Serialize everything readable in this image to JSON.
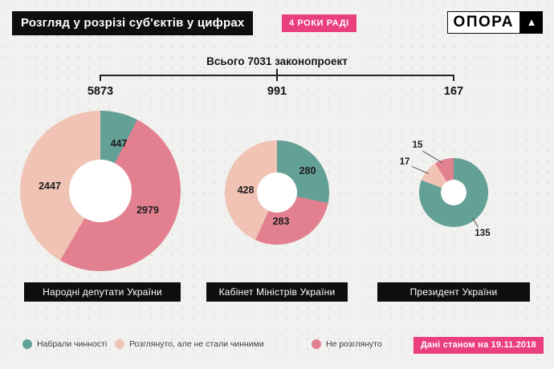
{
  "header": {
    "title": "Розгляд у розрізі суб'єктів у цифрах",
    "badge": "4 РОКИ РАДІ",
    "logo_text": "ОПОРА",
    "logo_triangle": "▲"
  },
  "overview": {
    "total_label": "Всього 7031 законопроект",
    "total_value": 7031
  },
  "chart_data": [
    {
      "type": "pie",
      "variant": "donut",
      "title": "Народні депутати України",
      "total": 5873,
      "direction": "clockwise",
      "start": "top",
      "segments": [
        {
          "label": "Набрали чинності",
          "value": 447,
          "color": "#63a096"
        },
        {
          "label": "Не розглянуто",
          "value": 2979,
          "color": "#e38090"
        },
        {
          "label": "Розглянуто, але не стали чинними",
          "value": 2447,
          "color": "#f0c3b5"
        }
      ]
    },
    {
      "type": "pie",
      "variant": "donut",
      "title": "Кабінет Міністрів України",
      "total": 991,
      "direction": "clockwise",
      "start": "top",
      "segments": [
        {
          "label": "Набрали чинності",
          "value": 280,
          "color": "#63a096"
        },
        {
          "label": "Не розглянуто",
          "value": 283,
          "color": "#e38090"
        },
        {
          "label": "Розглянуто, але не стали чинними",
          "value": 428,
          "color": "#f0c3b5"
        }
      ]
    },
    {
      "type": "pie",
      "variant": "donut",
      "title": "Президент України",
      "total": 167,
      "direction": "clockwise",
      "start": "top",
      "segments": [
        {
          "label": "Набрали чинності",
          "value": 135,
          "color": "#63a096"
        },
        {
          "label": "Розглянуто, але не стали чинними",
          "value": 17,
          "color": "#f0c3b5"
        },
        {
          "label": "Не розглянуто",
          "value": 15,
          "color": "#e38090"
        }
      ]
    }
  ],
  "legend": [
    {
      "label": "Набрали чинності",
      "color": "#63a096"
    },
    {
      "label": "Розглянуто, але не стали чинними",
      "color": "#f0c3b5"
    },
    {
      "label": "Не розглянуто",
      "color": "#e38090"
    }
  ],
  "footer": {
    "badge": "Дані станом на 19.11.2018"
  },
  "colors": {
    "accent_pink": "#ea3f7d",
    "teal": "#63a096",
    "salmon": "#f0c3b5",
    "rose": "#e38090",
    "bar_black": "#0e0e0e",
    "background": "#f1f1ef"
  }
}
